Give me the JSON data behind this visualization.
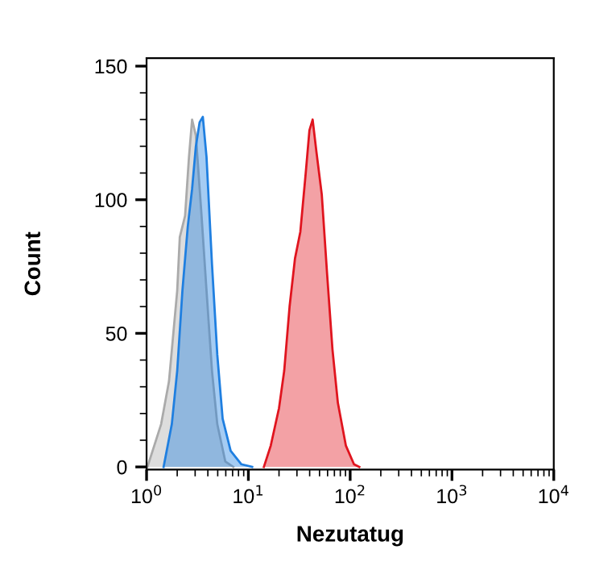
{
  "chart_data": {
    "type": "area",
    "xlabel": "Nezutatug",
    "ylabel": "Count",
    "log": "x",
    "grid": false,
    "legend": false,
    "xlim": [
      1,
      10000
    ],
    "ylim": [
      -1,
      153
    ],
    "xticks": [
      {
        "value": 1,
        "label": "10$^{0}$"
      },
      {
        "value": 10,
        "label": "10$^{1}$"
      },
      {
        "value": 100,
        "label": "10$^{2}$"
      },
      {
        "value": 1000,
        "label": "10$^{3}$"
      },
      {
        "value": 10000,
        "label": "10$^{4}$"
      }
    ],
    "yticks": [
      0,
      50,
      100,
      150
    ],
    "series": [
      {
        "color": "#aaaaaa",
        "x": [
          1.02,
          1.39,
          1.66,
          2.0,
          2.12,
          2.39,
          2.61,
          2.8,
          3.05,
          3.44,
          3.88,
          4.39,
          4.95,
          5.94,
          7.12
        ],
        "values": [
          0,
          16,
          32,
          66,
          86,
          94,
          116,
          130,
          124,
          96,
          66,
          36,
          16,
          2,
          0
        ]
      },
      {
        "color": "#1f7fe0",
        "x": [
          1.47,
          1.77,
          2.0,
          2.25,
          2.54,
          2.8,
          3.05,
          3.32,
          3.57,
          3.88,
          4.39,
          4.95,
          5.59,
          6.7,
          8.54,
          10.9
        ],
        "values": [
          0,
          16,
          36,
          66,
          90,
          104,
          120,
          129,
          131,
          116,
          76,
          42,
          18,
          6,
          1,
          0
        ]
      },
      {
        "color": "#e0141e",
        "x": [
          14.2,
          16.6,
          20.0,
          22.5,
          25.4,
          28.7,
          32.4,
          36.6,
          39.8,
          42.8,
          46.6,
          52.6,
          59.4,
          67.0,
          75.7,
          90.7,
          109,
          123
        ],
        "values": [
          0,
          8,
          22,
          36,
          60,
          78,
          88,
          110,
          126,
          130,
          118,
          102,
          72,
          44,
          24,
          8,
          1,
          0
        ]
      }
    ]
  }
}
